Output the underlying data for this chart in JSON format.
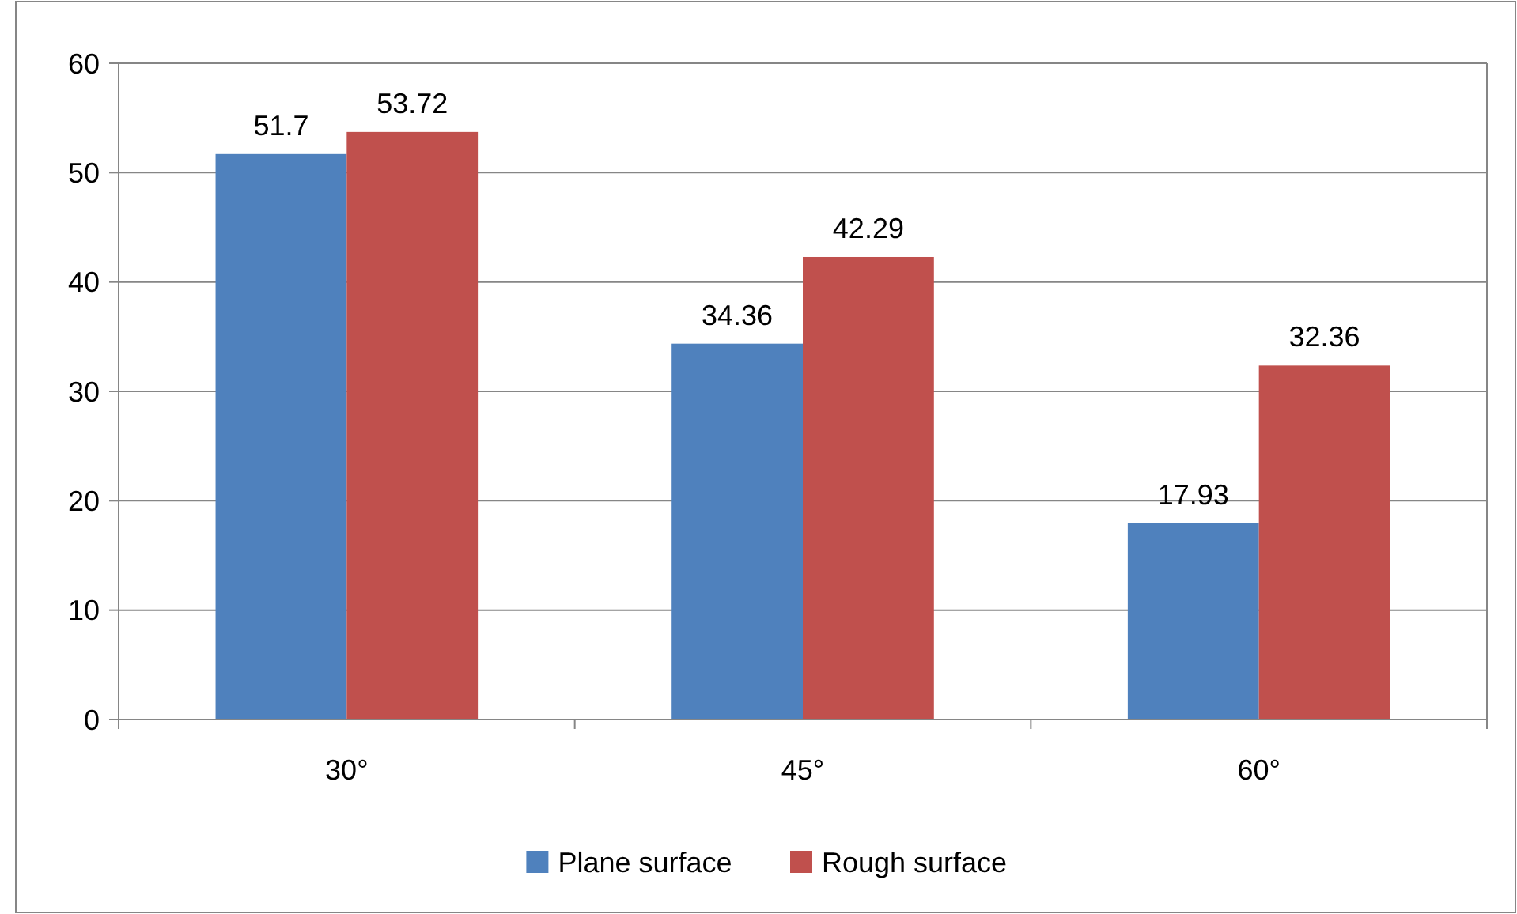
{
  "chart_data": {
    "type": "bar",
    "categories": [
      "30°",
      "45°",
      "60°"
    ],
    "series": [
      {
        "name": "Plane surface",
        "color": "#4f81bd",
        "values": [
          51.7,
          34.36,
          17.93
        ]
      },
      {
        "name": "Rough surface",
        "color": "#c0504d",
        "values": [
          53.72,
          42.29,
          32.36
        ]
      }
    ],
    "ylim": [
      0,
      60
    ],
    "yticks": [
      0,
      10,
      20,
      30,
      40,
      50,
      60
    ],
    "grid": "y",
    "legend": "bottom",
    "data_labels": true
  }
}
